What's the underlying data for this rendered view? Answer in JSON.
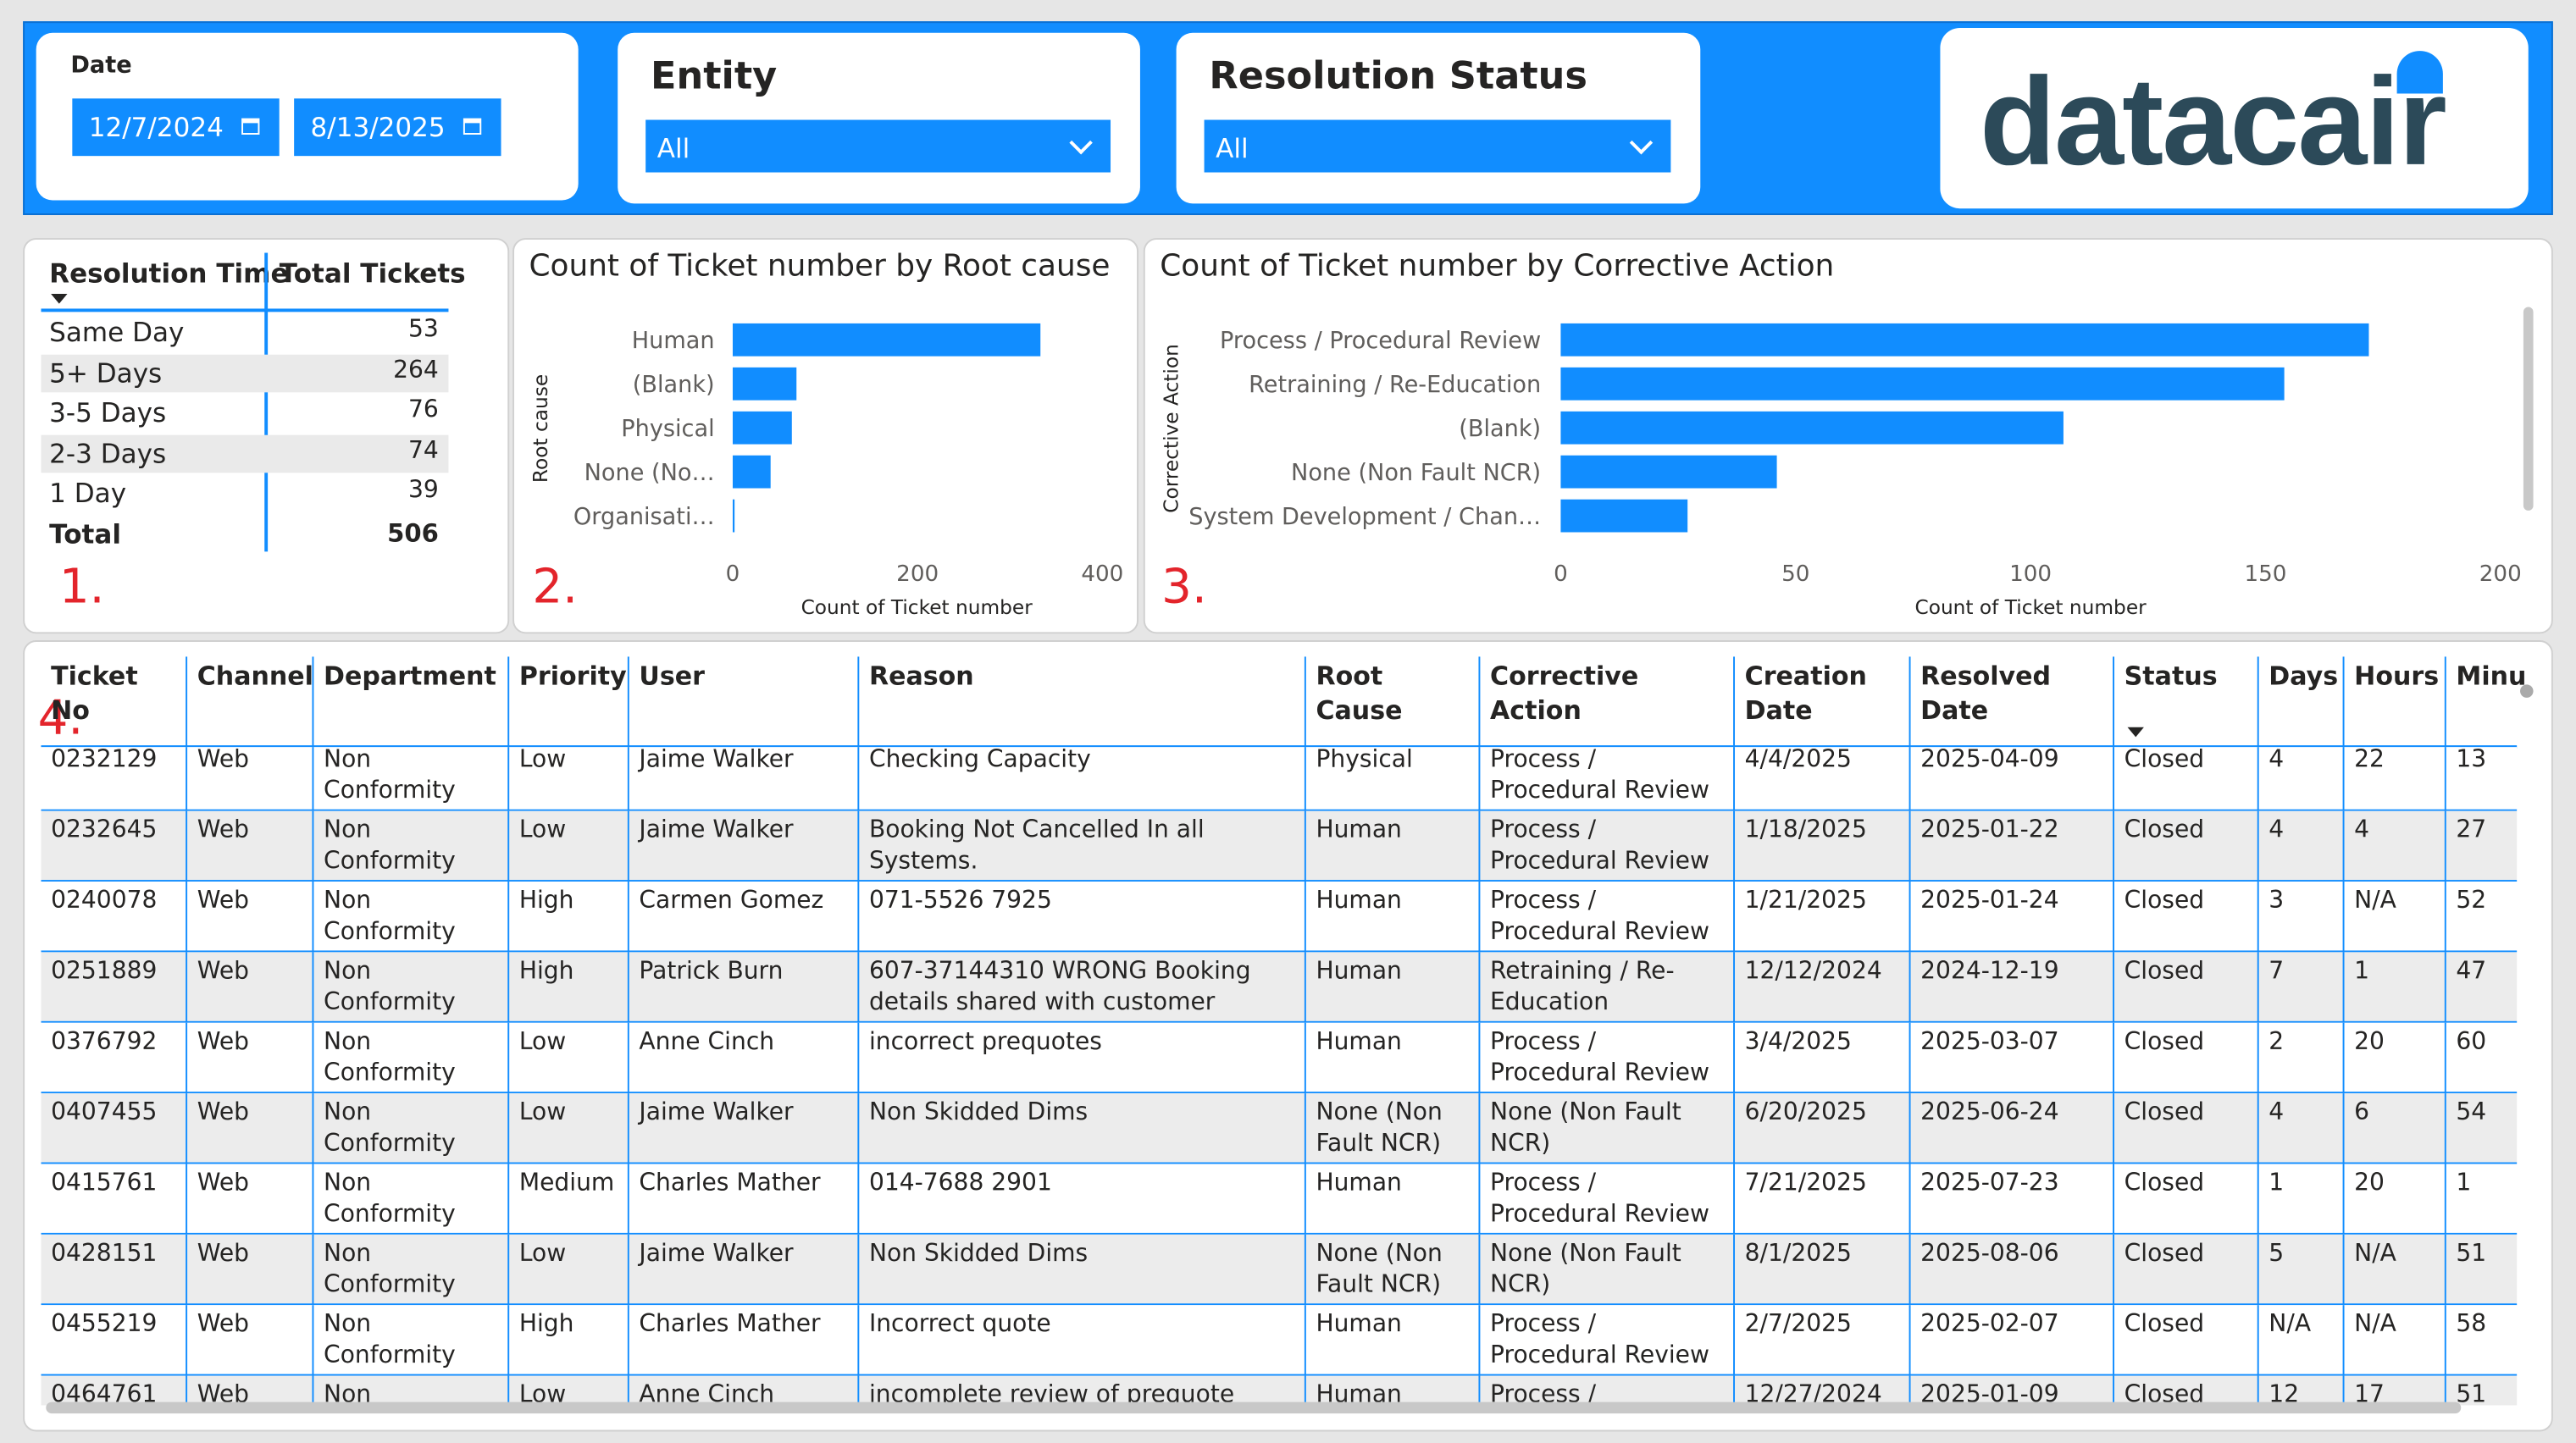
{
  "filters": {
    "date": {
      "label": "Date",
      "start": "12/7/2024",
      "end": "8/13/2025"
    },
    "entity": {
      "label": "Entity",
      "value": "All"
    },
    "status": {
      "label": "Resolution Status",
      "value": "All"
    }
  },
  "logo": "datacair",
  "annotations": [
    "1.",
    "2.",
    "3.",
    "4."
  ],
  "summary_table": {
    "columns": [
      "Resolution Time",
      "Total Tickets"
    ],
    "rows": [
      [
        "Same Day",
        53
      ],
      [
        "5+ Days",
        264
      ],
      [
        "3-5 Days",
        76
      ],
      [
        "2-3 Days",
        74
      ],
      [
        "1 Day",
        39
      ]
    ],
    "total": [
      "Total",
      506
    ]
  },
  "chart_data": [
    {
      "type": "bar",
      "orientation": "horizontal",
      "title": "Count of Ticket number by Root cause",
      "x_label": "Count of Ticket number",
      "y_label": "Root cause",
      "categories": [
        "Human",
        "(Blank)",
        "Physical",
        "None (No…",
        "Organisati…"
      ],
      "values": [
        333,
        69,
        64,
        41,
        2
      ],
      "color": "#118dff",
      "xlim": [
        0,
        400
      ],
      "xticks": [
        0,
        200,
        400
      ]
    },
    {
      "type": "bar",
      "orientation": "horizontal",
      "title": "Count of Ticket number by Corrective Action",
      "x_label": "Count of Ticket number",
      "y_label": "Corrective Action",
      "categories": [
        "Process / Procedural Review",
        "Retraining / Re-Education",
        "(Blank)",
        "None (Non Fault NCR)",
        "System Development / Chan…"
      ],
      "values": [
        172,
        154,
        107,
        46,
        27
      ],
      "color": "#118dff",
      "xlim": [
        0,
        200
      ],
      "xticks": [
        0,
        50,
        100,
        150,
        200
      ]
    }
  ],
  "tickets_table": {
    "columns": [
      "Ticket No",
      "Channel",
      "Department",
      "Priority",
      "User",
      "Reason",
      "Root Cause",
      "Corrective Action",
      "Creation Date",
      "Resolved Date",
      "Status",
      "Days",
      "Hours",
      "Minu"
    ],
    "rows": [
      [
        "0232129",
        "Web",
        "Non Conformity",
        "Low",
        "Jaime Walker",
        "Checking Capacity",
        "Physical",
        "Process / Procedural Review",
        "4/4/2025",
        "2025-04-09",
        "Closed",
        "4",
        "22",
        "13"
      ],
      [
        "0232645",
        "Web",
        "Non Conformity",
        "Low",
        "Jaime Walker",
        "Booking Not Cancelled In all Systems.",
        "Human",
        "Process / Procedural Review",
        "1/18/2025",
        "2025-01-22",
        "Closed",
        "4",
        "4",
        "27"
      ],
      [
        "0240078",
        "Web",
        "Non Conformity",
        "High",
        "Carmen Gomez",
        "071-5526 7925",
        "Human",
        "Process / Procedural Review",
        "1/21/2025",
        "2025-01-24",
        "Closed",
        "3",
        "N/A",
        "52"
      ],
      [
        "0251889",
        "Web",
        "Non Conformity",
        "High",
        "Patrick Burn",
        "607-37144310 WRONG Booking details shared with customer",
        "Human",
        "Retraining / Re-Education",
        "12/12/2024",
        "2024-12-19",
        "Closed",
        "7",
        "1",
        "47"
      ],
      [
        "0376792",
        "Web",
        "Non Conformity",
        "Low",
        "Anne Cinch",
        "incorrect prequotes",
        "Human",
        "Process / Procedural Review",
        "3/4/2025",
        "2025-03-07",
        "Closed",
        "2",
        "20",
        "60"
      ],
      [
        "0407455",
        "Web",
        "Non Conformity",
        "Low",
        "Jaime Walker",
        "Non Skidded Dims",
        "None (Non Fault NCR)",
        "None (Non Fault NCR)",
        "6/20/2025",
        "2025-06-24",
        "Closed",
        "4",
        "6",
        "54"
      ],
      [
        "0415761",
        "Web",
        "Non Conformity",
        "Medium",
        "Charles Mather",
        "014-7688 2901",
        "Human",
        "Process / Procedural Review",
        "7/21/2025",
        "2025-07-23",
        "Closed",
        "1",
        "20",
        "1"
      ],
      [
        "0428151",
        "Web",
        "Non Conformity",
        "Low",
        "Jaime Walker",
        "Non Skidded Dims",
        "None (Non Fault NCR)",
        "None (Non Fault NCR)",
        "8/1/2025",
        "2025-08-06",
        "Closed",
        "5",
        "N/A",
        "51"
      ],
      [
        "0455219",
        "Web",
        "Non Conformity",
        "High",
        "Charles Mather",
        "Incorrect quote",
        "Human",
        "Process / Procedural Review",
        "2/7/2025",
        "2025-02-07",
        "Closed",
        "N/A",
        "N/A",
        "58"
      ],
      [
        "0464761",
        "Web",
        "Non Conformity",
        "Low",
        "Anne Cinch",
        "incomplete review of prequote",
        "Human",
        "Process / Procedural Review",
        "12/27/2024",
        "2025-01-09",
        "Closed",
        "12",
        "17",
        "51"
      ]
    ]
  }
}
